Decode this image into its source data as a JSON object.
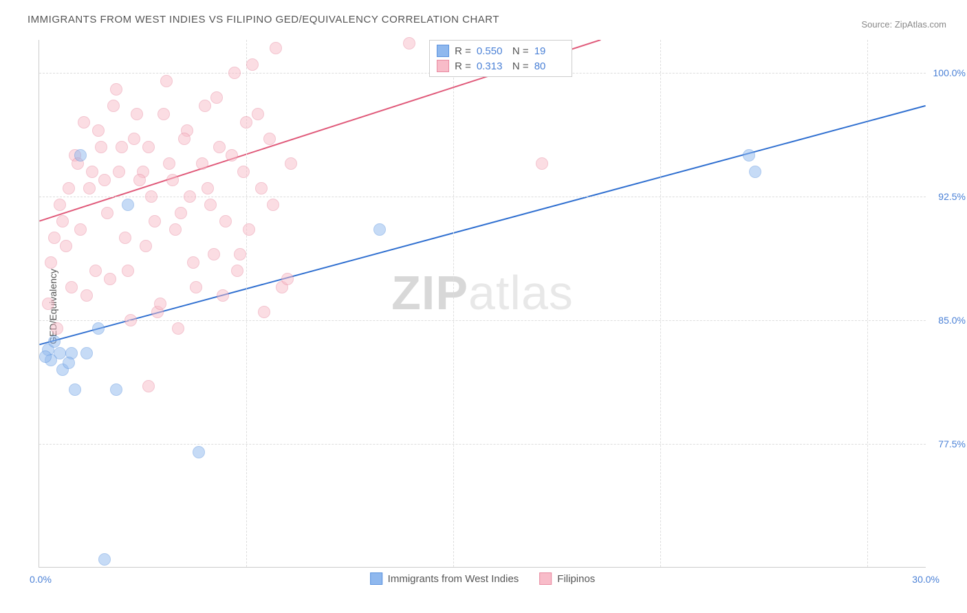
{
  "title": "IMMIGRANTS FROM WEST INDIES VS FILIPINO GED/EQUIVALENCY CORRELATION CHART",
  "source": "Source: ZipAtlas.com",
  "y_axis_title": "GED/Equivalency",
  "watermark_a": "ZIP",
  "watermark_b": "atlas",
  "chart": {
    "type": "scatter",
    "xlim": [
      0,
      30
    ],
    "ylim": [
      70,
      102
    ],
    "y_ticks": [
      77.5,
      85.0,
      92.5,
      100.0
    ],
    "y_tick_labels": [
      "77.5%",
      "85.0%",
      "92.5%",
      "100.0%"
    ],
    "x_min_label": "0.0%",
    "x_max_label": "30.0%",
    "x_gridlines_at": [
      7,
      14,
      21,
      28
    ],
    "background_color": "#ffffff",
    "grid_color": "#dddddd",
    "axis_color": "#cccccc",
    "label_color": "#4a80d6",
    "point_radius": 9,
    "point_opacity": 0.5,
    "line_width": 2,
    "series": [
      {
        "name": "Immigrants from West Indies",
        "color": "#8fb8ee",
        "stroke": "#5a92de",
        "line_color": "#2f6fd0",
        "R": "0.550",
        "N": "19",
        "line": {
          "x1": 0,
          "y1": 83.5,
          "x2": 30,
          "y2": 98.0
        },
        "points": [
          {
            "x": 1.4,
            "y": 95.0
          },
          {
            "x": 3.0,
            "y": 92.0
          },
          {
            "x": 0.3,
            "y": 83.2
          },
          {
            "x": 0.7,
            "y": 83.0
          },
          {
            "x": 1.1,
            "y": 83.0
          },
          {
            "x": 1.6,
            "y": 83.0
          },
          {
            "x": 2.0,
            "y": 84.5
          },
          {
            "x": 0.8,
            "y": 82.0
          },
          {
            "x": 1.2,
            "y": 80.8
          },
          {
            "x": 2.6,
            "y": 80.8
          },
          {
            "x": 5.4,
            "y": 77.0
          },
          {
            "x": 2.2,
            "y": 70.5
          },
          {
            "x": 11.5,
            "y": 90.5
          },
          {
            "x": 24.0,
            "y": 95.0
          },
          {
            "x": 24.2,
            "y": 94.0
          },
          {
            "x": 0.5,
            "y": 83.7
          },
          {
            "x": 0.4,
            "y": 82.6
          },
          {
            "x": 1.0,
            "y": 82.4
          },
          {
            "x": 0.2,
            "y": 82.8
          }
        ]
      },
      {
        "name": "Filipinos",
        "color": "#f8bcc9",
        "stroke": "#e88aa0",
        "line_color": "#e05a7a",
        "R": "0.313",
        "N": "80",
        "line": {
          "x1": 0,
          "y1": 91.0,
          "x2": 19,
          "y2": 102.0
        },
        "points": [
          {
            "x": 0.5,
            "y": 90.0
          },
          {
            "x": 0.8,
            "y": 91.0
          },
          {
            "x": 1.0,
            "y": 93.0
          },
          {
            "x": 1.2,
            "y": 95.0
          },
          {
            "x": 1.5,
            "y": 97.0
          },
          {
            "x": 1.8,
            "y": 94.0
          },
          {
            "x": 2.0,
            "y": 96.5
          },
          {
            "x": 2.2,
            "y": 93.5
          },
          {
            "x": 2.5,
            "y": 98.0
          },
          {
            "x": 2.8,
            "y": 95.5
          },
          {
            "x": 3.0,
            "y": 88.0
          },
          {
            "x": 3.2,
            "y": 96.0
          },
          {
            "x": 3.5,
            "y": 94.0
          },
          {
            "x": 3.8,
            "y": 92.5
          },
          {
            "x": 4.0,
            "y": 85.5
          },
          {
            "x": 4.2,
            "y": 97.5
          },
          {
            "x": 4.5,
            "y": 93.5
          },
          {
            "x": 4.8,
            "y": 91.5
          },
          {
            "x": 5.0,
            "y": 96.5
          },
          {
            "x": 5.2,
            "y": 88.5
          },
          {
            "x": 5.5,
            "y": 94.5
          },
          {
            "x": 5.8,
            "y": 92.0
          },
          {
            "x": 6.0,
            "y": 98.5
          },
          {
            "x": 6.2,
            "y": 86.5
          },
          {
            "x": 6.5,
            "y": 95.0
          },
          {
            "x": 6.8,
            "y": 89.0
          },
          {
            "x": 7.0,
            "y": 97.0
          },
          {
            "x": 7.2,
            "y": 100.5
          },
          {
            "x": 7.5,
            "y": 93.0
          },
          {
            "x": 7.8,
            "y": 96.0
          },
          {
            "x": 8.0,
            "y": 101.5
          },
          {
            "x": 8.2,
            "y": 87.0
          },
          {
            "x": 8.5,
            "y": 94.5
          },
          {
            "x": 0.3,
            "y": 86.0
          },
          {
            "x": 0.4,
            "y": 88.5
          },
          {
            "x": 0.6,
            "y": 84.5
          },
          {
            "x": 0.7,
            "y": 92.0
          },
          {
            "x": 0.9,
            "y": 89.5
          },
          {
            "x": 1.1,
            "y": 87.0
          },
          {
            "x": 1.3,
            "y": 94.5
          },
          {
            "x": 1.4,
            "y": 90.5
          },
          {
            "x": 1.6,
            "y": 86.5
          },
          {
            "x": 1.7,
            "y": 93.0
          },
          {
            "x": 1.9,
            "y": 88.0
          },
          {
            "x": 2.1,
            "y": 95.5
          },
          {
            "x": 2.3,
            "y": 91.5
          },
          {
            "x": 2.4,
            "y": 87.5
          },
          {
            "x": 2.6,
            "y": 99.0
          },
          {
            "x": 2.7,
            "y": 94.0
          },
          {
            "x": 2.9,
            "y": 90.0
          },
          {
            "x": 3.1,
            "y": 85.0
          },
          {
            "x": 3.3,
            "y": 97.5
          },
          {
            "x": 3.4,
            "y": 93.5
          },
          {
            "x": 3.6,
            "y": 89.5
          },
          {
            "x": 3.7,
            "y": 95.5
          },
          {
            "x": 3.9,
            "y": 91.0
          },
          {
            "x": 4.1,
            "y": 86.0
          },
          {
            "x": 4.3,
            "y": 99.5
          },
          {
            "x": 4.4,
            "y": 94.5
          },
          {
            "x": 4.6,
            "y": 90.5
          },
          {
            "x": 4.7,
            "y": 84.5
          },
          {
            "x": 4.9,
            "y": 96.0
          },
          {
            "x": 5.1,
            "y": 92.5
          },
          {
            "x": 5.3,
            "y": 87.0
          },
          {
            "x": 5.6,
            "y": 98.0
          },
          {
            "x": 5.7,
            "y": 93.0
          },
          {
            "x": 5.9,
            "y": 89.0
          },
          {
            "x": 6.1,
            "y": 95.5
          },
          {
            "x": 6.3,
            "y": 91.0
          },
          {
            "x": 6.6,
            "y": 100.0
          },
          {
            "x": 6.7,
            "y": 88.0
          },
          {
            "x": 6.9,
            "y": 94.0
          },
          {
            "x": 7.1,
            "y": 90.5
          },
          {
            "x": 7.4,
            "y": 97.5
          },
          {
            "x": 7.6,
            "y": 85.5
          },
          {
            "x": 7.9,
            "y": 92.0
          },
          {
            "x": 8.4,
            "y": 87.5
          },
          {
            "x": 3.7,
            "y": 81.0
          },
          {
            "x": 12.5,
            "y": 101.8
          },
          {
            "x": 17.0,
            "y": 94.5
          }
        ]
      }
    ]
  },
  "stats_header": {
    "r_label": "R =",
    "n_label": "N ="
  },
  "legend": {
    "series1_label": "Immigrants from West Indies",
    "series2_label": "Filipinos"
  }
}
